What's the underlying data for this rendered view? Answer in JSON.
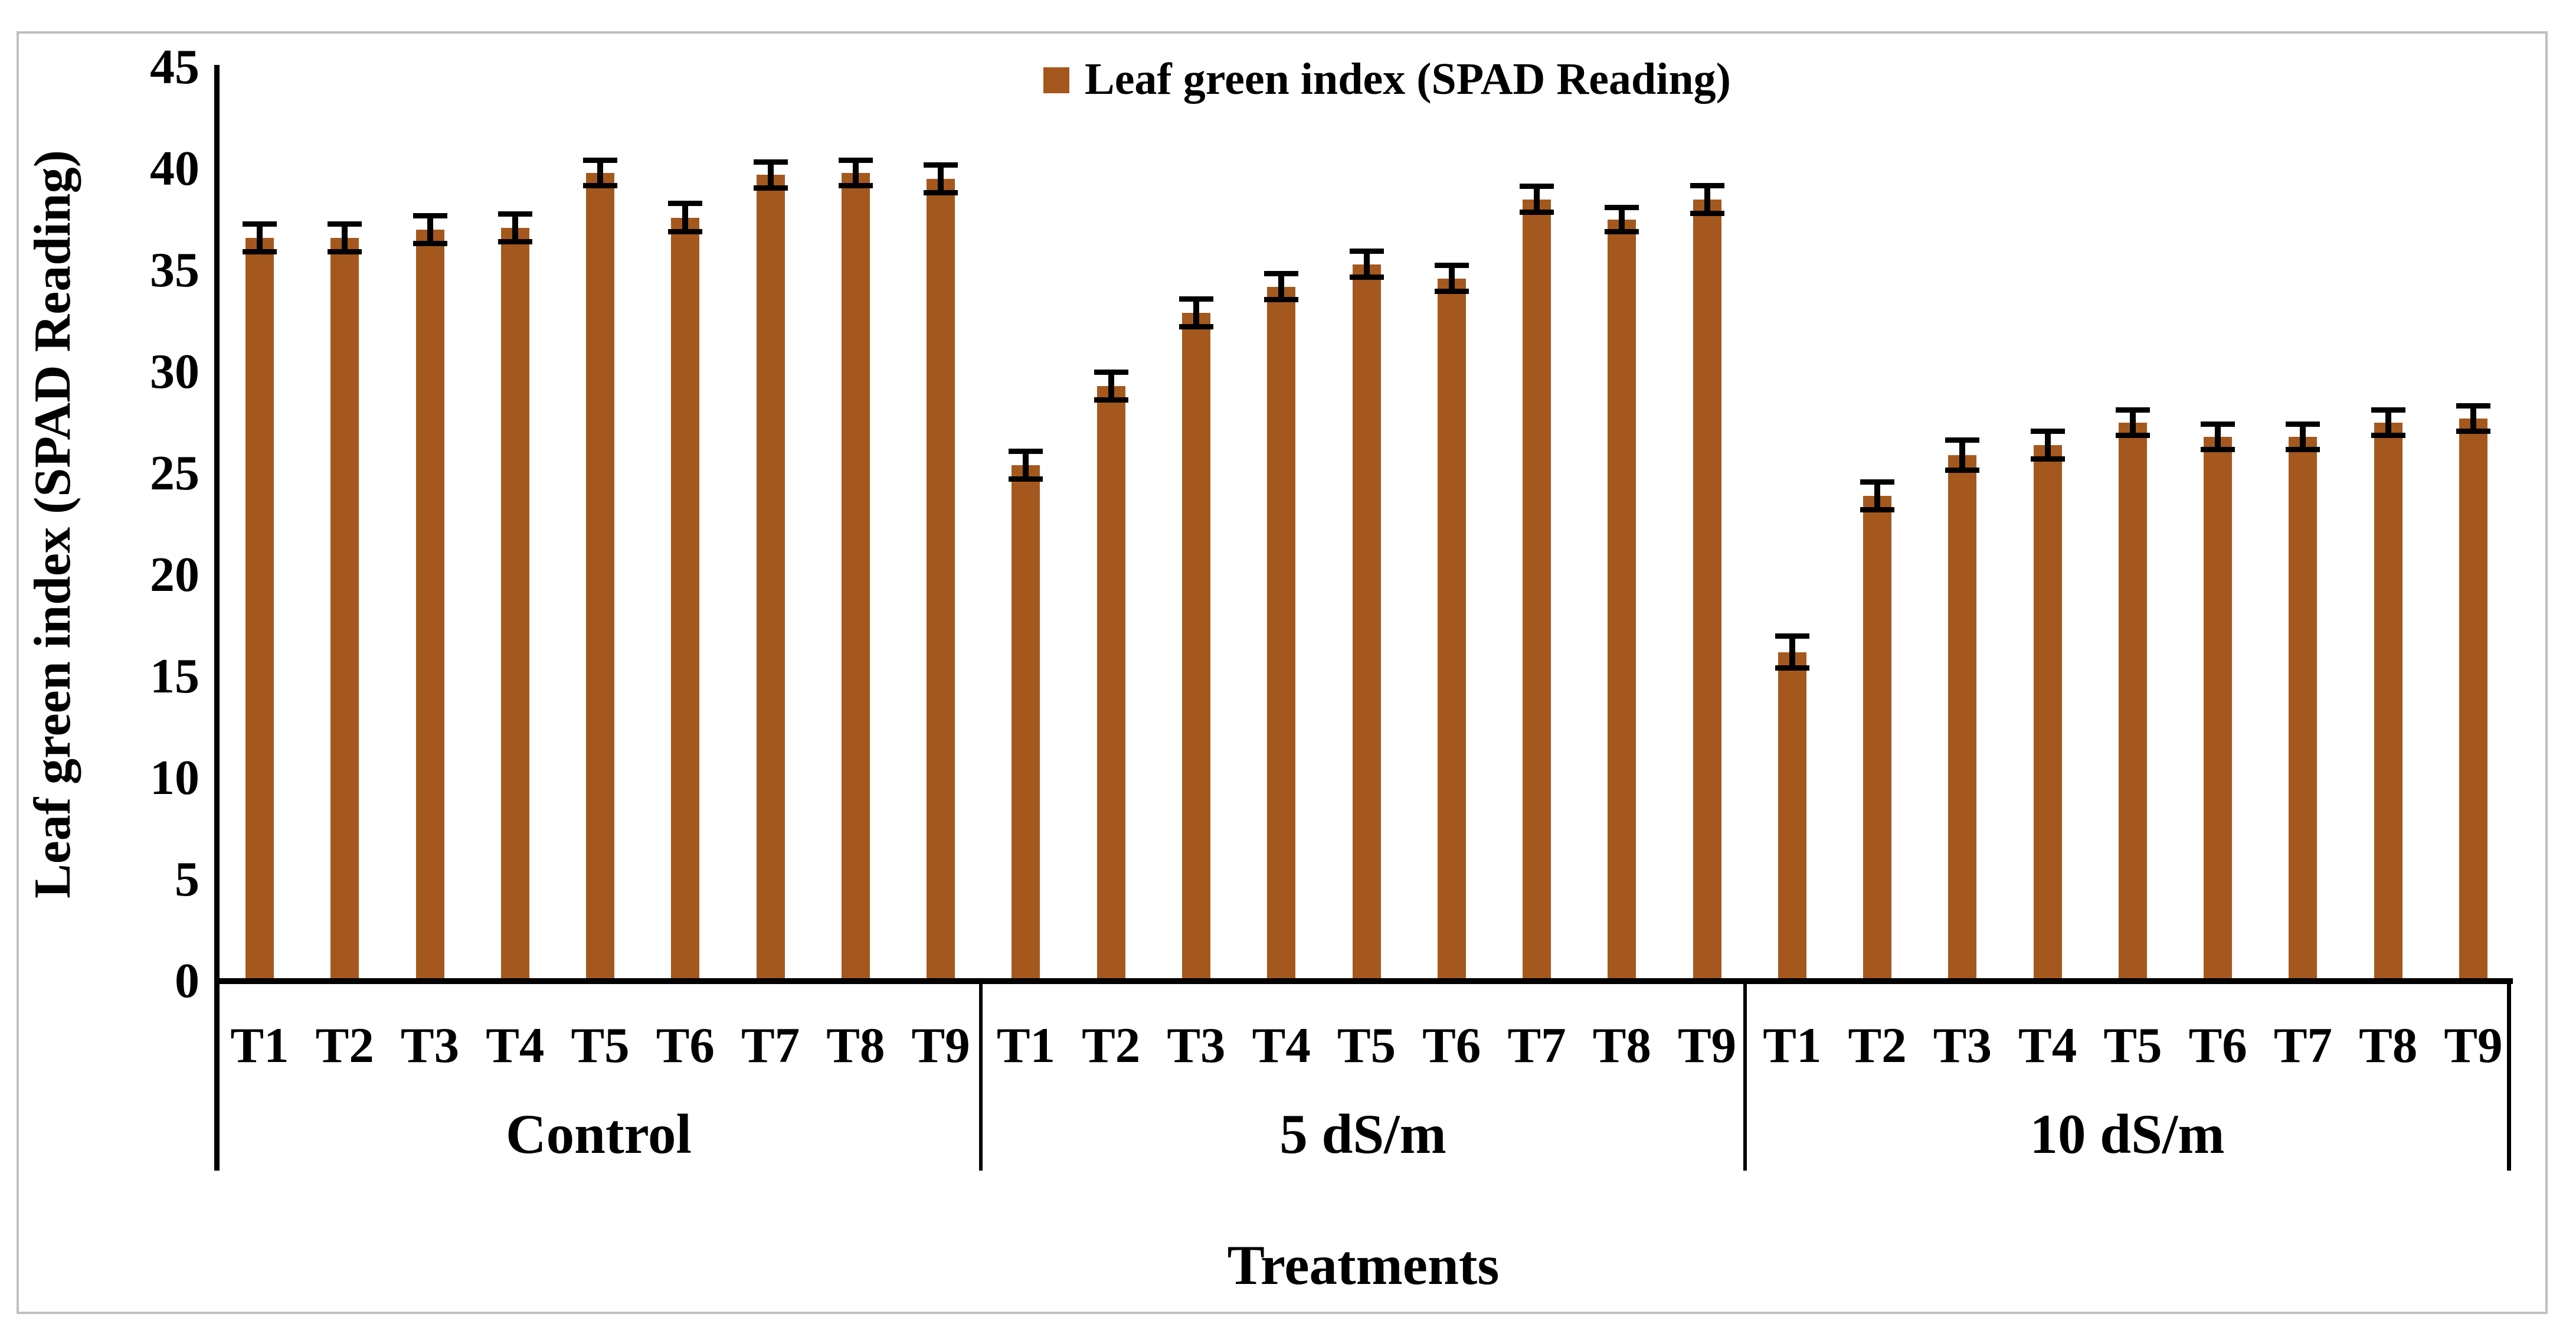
{
  "figure": {
    "background": "#ffffff",
    "frame_color": "#BFBFBF"
  },
  "axes": {
    "y_title": "Leaf green index (SPAD Reading)",
    "x_title": "Treatments"
  },
  "legend": {
    "label": "Leaf green index (SPAD Reading)",
    "marker_color": "#A5581E",
    "position": "top-center"
  },
  "chart_data": {
    "type": "bar",
    "title": "",
    "ylabel": "Leaf green index (SPAD Reading)",
    "xlabel": "Treatments",
    "ylim": [
      0,
      45
    ],
    "yticks": [
      0,
      5,
      10,
      15,
      20,
      25,
      30,
      35,
      40,
      45
    ],
    "grid": false,
    "bar_color": "#A5581E",
    "error_bar_color": "#000000",
    "series_name": "Leaf green index (SPAD Reading)",
    "groups": [
      {
        "label": "Control",
        "categories": [
          "T1",
          "T2",
          "T3",
          "T4",
          "T5",
          "T6",
          "T7",
          "T8",
          "T9"
        ],
        "values": [
          36.6,
          36.6,
          37.0,
          37.1,
          39.8,
          37.6,
          39.7,
          39.8,
          39.5
        ],
        "errors": [
          0.7,
          0.7,
          0.7,
          0.7,
          0.65,
          0.7,
          0.65,
          0.65,
          0.7
        ]
      },
      {
        "label": "5 dS/m",
        "categories": [
          "T1",
          "T2",
          "T3",
          "T4",
          "T5",
          "T6",
          "T7",
          "T8",
          "T9"
        ],
        "values": [
          25.4,
          29.3,
          32.9,
          34.2,
          35.3,
          34.6,
          38.5,
          37.5,
          38.5
        ],
        "errors": [
          0.7,
          0.7,
          0.7,
          0.65,
          0.65,
          0.65,
          0.65,
          0.6,
          0.7
        ]
      },
      {
        "label": "10 dS/m",
        "categories": [
          "T1",
          "T2",
          "T3",
          "T4",
          "T5",
          "T6",
          "T7",
          "T8",
          "T9"
        ],
        "values": [
          16.2,
          23.9,
          25.9,
          26.4,
          27.5,
          26.8,
          26.8,
          27.5,
          27.7
        ],
        "errors": [
          0.8,
          0.7,
          0.75,
          0.7,
          0.65,
          0.65,
          0.65,
          0.65,
          0.65
        ]
      }
    ]
  }
}
